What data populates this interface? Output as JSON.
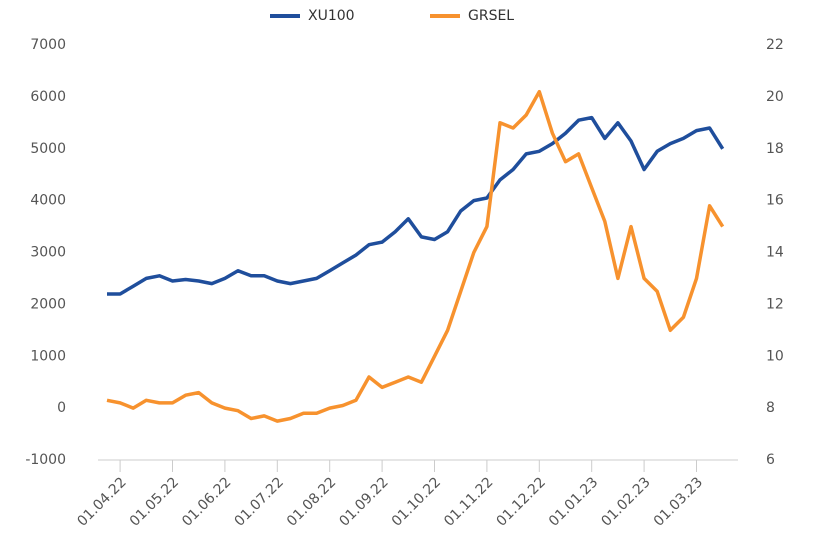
{
  "chart_data": {
    "type": "line",
    "categories": [
      null,
      "01.04.22",
      null,
      null,
      null,
      "01.05.22",
      null,
      null,
      null,
      "01.06.22",
      null,
      null,
      null,
      "01.07.22",
      null,
      null,
      null,
      "01.08.22",
      null,
      null,
      null,
      "01.09.22",
      null,
      null,
      null,
      "01.10.22",
      null,
      null,
      null,
      "01.11.22",
      null,
      null,
      null,
      "01.12.22",
      null,
      null,
      null,
      "01.01.23",
      null,
      null,
      null,
      "01.02.23",
      null,
      null,
      null,
      "01.03.23",
      null,
      null
    ],
    "series": [
      {
        "name": "XU100",
        "color": "#1f4e9c",
        "axis": "y",
        "values": [
          2200,
          2200,
          2350,
          2500,
          2550,
          2450,
          2480,
          2450,
          2400,
          2500,
          2650,
          2550,
          2550,
          2450,
          2400,
          2450,
          2500,
          2650,
          2800,
          2950,
          3150,
          3200,
          3400,
          3650,
          3300,
          3250,
          3400,
          3800,
          4000,
          4050,
          4400,
          4600,
          4900,
          4950,
          5100,
          5300,
          5550,
          5600,
          5200,
          5500,
          5150,
          4600,
          4950,
          5100,
          5200,
          5350,
          5400,
          5000
        ]
      },
      {
        "name": "GRSEL",
        "color": "#f7922e",
        "axis": "y2",
        "values": [
          8.3,
          8.2,
          8.0,
          8.3,
          8.2,
          8.2,
          8.5,
          8.6,
          8.2,
          8.0,
          7.9,
          7.6,
          7.7,
          7.5,
          7.6,
          7.8,
          7.8,
          8.0,
          8.1,
          8.3,
          9.2,
          8.8,
          9.0,
          9.2,
          9.0,
          10.0,
          11.0,
          12.5,
          14.0,
          15.0,
          19.0,
          18.8,
          19.3,
          20.2,
          18.6,
          17.5,
          17.8,
          16.5,
          15.2,
          13.0,
          15.0,
          13.0,
          12.5,
          11.0,
          11.5,
          13.0,
          15.8,
          15.0
        ]
      }
    ],
    "ylim": [
      -1000,
      7000
    ],
    "yticks": [
      -1000,
      0,
      1000,
      2000,
      3000,
      4000,
      5000,
      6000,
      7000
    ],
    "y2lim": [
      6,
      22
    ],
    "y2ticks": [
      6,
      8,
      10,
      12,
      14,
      16,
      18,
      20,
      22
    ],
    "legend": "top"
  }
}
